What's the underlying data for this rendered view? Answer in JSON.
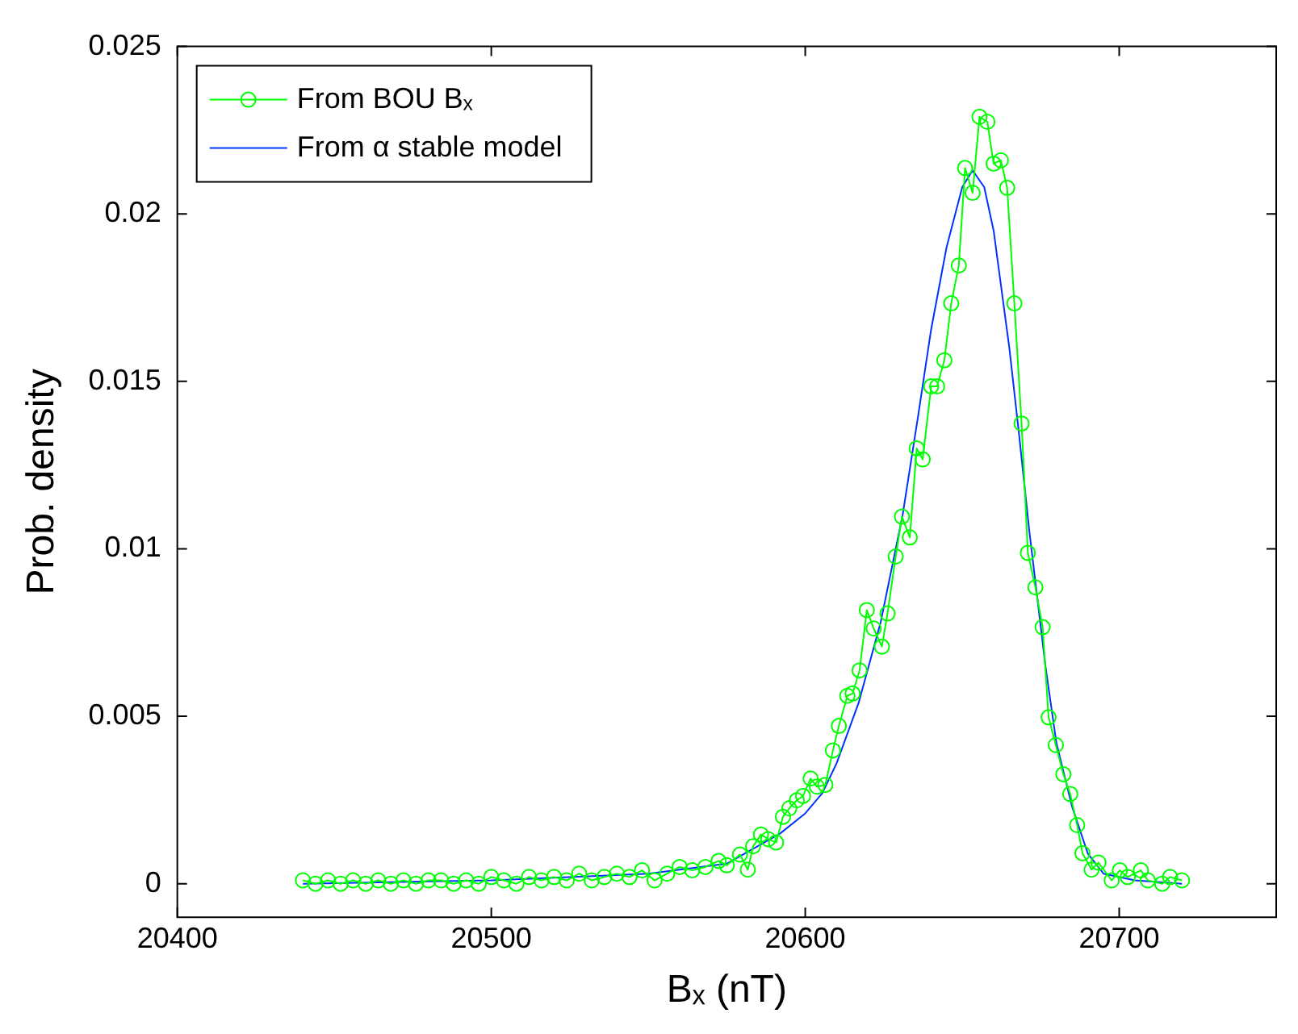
{
  "chart_data": {
    "type": "line",
    "xlabel": "Bₓ (nT)",
    "ylabel": "Prob. density",
    "xlim": [
      20400,
      20750
    ],
    "ylim": [
      -0.001,
      0.025
    ],
    "xticks": [
      20400,
      20500,
      20600,
      20700
    ],
    "yticks": [
      0,
      0.005,
      0.01,
      0.015,
      0.02,
      0.025
    ],
    "grid": false,
    "legend": "top left",
    "series": [
      {
        "name": "From BOU Bₓ",
        "color": "#00ff00",
        "marker": "circle",
        "x": [
          20440,
          20444,
          20448,
          20452,
          20456,
          20460,
          20464,
          20468,
          20472,
          20476,
          20480,
          20484,
          20488,
          20492,
          20496,
          20500,
          20504,
          20508,
          20512,
          20516,
          20520,
          20524,
          20528,
          20532,
          20536,
          20540,
          20544,
          20548,
          20552,
          20556,
          20560,
          20564,
          20568.2,
          20572.4,
          20575,
          20579.2,
          20581.7,
          20583.4,
          20585.9,
          20588.2,
          20590.7,
          20592.9,
          20594.9,
          20597.3,
          20599.3,
          20601.7,
          20603.7,
          20606.4,
          20608.8,
          20610.7,
          20613.4,
          20615.1,
          20617.3,
          20619.6,
          20621.8,
          20624.4,
          20626.2,
          20628.8,
          20630.8,
          20633.3,
          20635.5,
          20637.4,
          20640.1,
          20642,
          20644.3,
          20646.5,
          20648.9,
          20650.9,
          20653.3,
          20655.5,
          20658,
          20660,
          20662.3,
          20664.3,
          20666.6,
          20668.9,
          20670.9,
          20673.3,
          20675.6,
          20677.5,
          20679.8,
          20682.2,
          20684.4,
          20686.6,
          20688.3,
          20691.2,
          20693.4,
          20697.6,
          20700.2,
          20702.7,
          20706.9,
          20709.1,
          20713.7,
          20716.2,
          20720
        ],
        "values": [
          0.0001,
          0.0,
          0.0001,
          0.0,
          0.0001,
          0.0,
          0.0001,
          0.0,
          0.0001,
          0.0,
          0.0001,
          0.0001,
          0.0,
          0.0001,
          0.0,
          0.0002,
          0.0001,
          0.0,
          0.0002,
          0.0001,
          0.0002,
          0.0001,
          0.0003,
          0.0001,
          0.0002,
          0.0003,
          0.0002,
          0.0004,
          0.0001,
          0.0003,
          0.0005,
          0.0004,
          0.0005,
          0.00068,
          0.00055,
          0.00087,
          0.00042,
          0.00112,
          0.00147,
          0.00133,
          0.00123,
          0.002,
          0.00225,
          0.00249,
          0.00262,
          0.00314,
          0.0029,
          0.00295,
          0.00398,
          0.00471,
          0.00561,
          0.00568,
          0.00637,
          0.00817,
          0.00762,
          0.00708,
          0.00807,
          0.00977,
          0.01096,
          0.01034,
          0.013,
          0.01267,
          0.01485,
          0.01485,
          0.01563,
          0.01733,
          0.01846,
          0.02137,
          0.02063,
          0.0229,
          0.02275,
          0.0215,
          0.0216,
          0.02078,
          0.01733,
          0.01374,
          0.00988,
          0.00885,
          0.00766,
          0.00497,
          0.00414,
          0.00327,
          0.00268,
          0.00175,
          0.00091,
          0.00042,
          0.00063,
          0.0001,
          0.0004,
          0.0002,
          0.0004,
          0.0001,
          0.0,
          0.0002,
          0.0001
        ]
      },
      {
        "name": "From α stable model",
        "color": "#0033ff",
        "marker": "none",
        "x": [
          20440,
          20500,
          20550,
          20575,
          20592,
          20600,
          20605.4,
          20610,
          20617,
          20624,
          20631,
          20636,
          20640,
          20645,
          20650,
          20653.3,
          20657,
          20660,
          20665,
          20668,
          20671.4,
          20676.5,
          20680,
          20685,
          20690,
          20695,
          20705,
          20720
        ],
        "values": [
          0.0,
          0.0001,
          0.0003,
          0.0006,
          0.0015,
          0.0021,
          0.0027,
          0.0036,
          0.0054,
          0.0078,
          0.011,
          0.014,
          0.0165,
          0.019,
          0.0208,
          0.0213,
          0.0208,
          0.0195,
          0.016,
          0.0135,
          0.0105,
          0.0065,
          0.0042,
          0.0023,
          0.0009,
          0.0003,
          0.0001,
          0.0
        ]
      }
    ]
  }
}
